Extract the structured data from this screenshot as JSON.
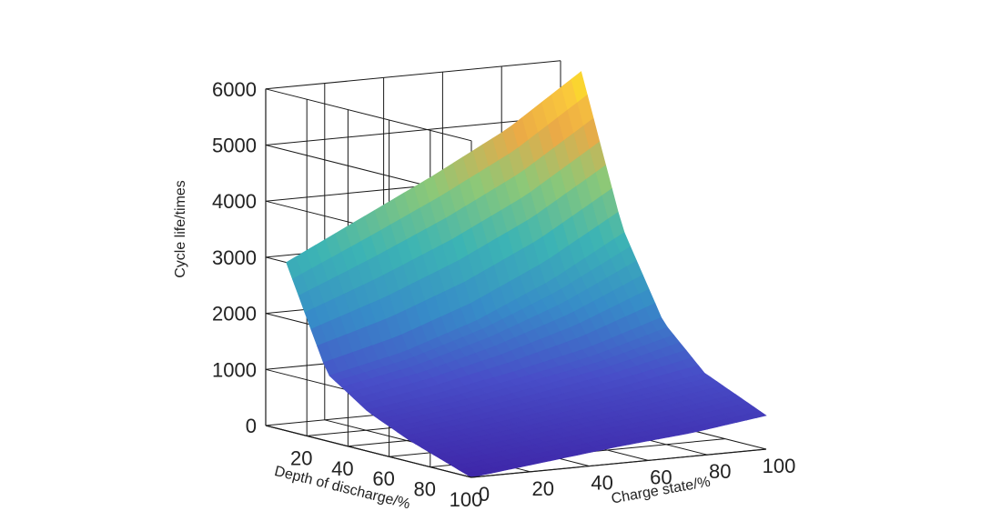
{
  "chart_data": {
    "type": "surface",
    "x_axis": {
      "label": "Depth of discharge/%",
      "ticks": [
        20,
        40,
        60,
        80,
        100
      ],
      "range": [
        0,
        100
      ]
    },
    "y_axis": {
      "label": "Charge state/%",
      "ticks": [
        0,
        20,
        40,
        60,
        80,
        100
      ],
      "range": [
        0,
        100
      ]
    },
    "z_axis": {
      "label": "Cycle life/times",
      "ticks": [
        0,
        1000,
        2000,
        3000,
        4000,
        5000,
        6000
      ],
      "range": [
        0,
        6000
      ]
    },
    "grid": true,
    "colormap": "parula",
    "surface": {
      "depth_of_discharge": [
        10,
        30,
        50,
        70,
        100
      ],
      "charge_state": [
        0,
        25,
        50,
        75,
        100
      ],
      "cycle_life": [
        [
          3000,
          3650,
          4300,
          5000,
          5900
        ],
        [
          1200,
          1500,
          1950,
          2550,
          3300
        ],
        [
          700,
          880,
          1120,
          1400,
          1800
        ],
        [
          380,
          520,
          700,
          870,
          1080
        ],
        [
          0,
          150,
          300,
          420,
          600
        ]
      ]
    }
  }
}
